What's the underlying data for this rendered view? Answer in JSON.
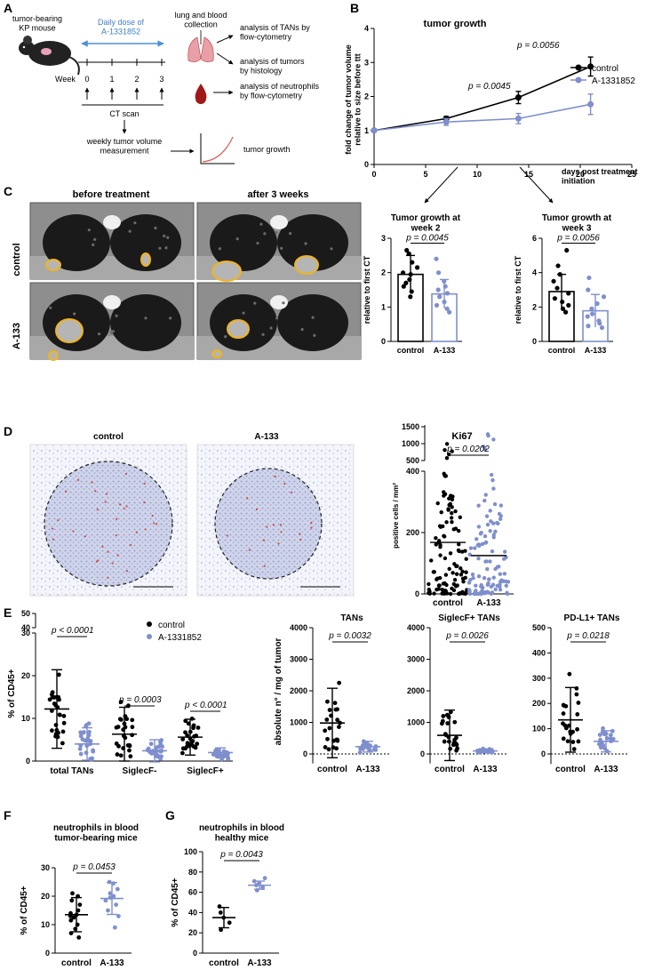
{
  "colors": {
    "control": "#000000",
    "treated": "#7f8fce",
    "treated_title": "#3f7fc8",
    "roi": "#f2b418",
    "lung_red": "#c94a4a"
  },
  "panels": {
    "A": "A",
    "B": "B",
    "C": "C",
    "D": "D",
    "E": "E",
    "F": "F",
    "G": "G"
  },
  "panelA": {
    "mouse_label": "tumor-bearing\nKP mouse",
    "daily_dose": "Daily dose of\nA-1331852",
    "collection": "lung and blood\ncollection",
    "week_label": "Week",
    "weeks": [
      "0",
      "1",
      "2",
      "3"
    ],
    "ct_scan": "CT scan",
    "weekly_measure": "weekly tumor volume\nmeasurement",
    "tumor_growth": "tumor growth",
    "analysis1": "analysis of TANs by\nflow-cytometry",
    "analysis2": "analysis of tumors\nby histology",
    "analysis3": "analysis of neutrophils\nby flow-cytometry"
  },
  "panelC": {
    "col1": "before treatment",
    "col2": "after 3 weeks",
    "row1": "control",
    "row2": "A-133"
  },
  "panelD": {
    "col1": "control",
    "col2": "A-133"
  },
  "chart_data": [
    {
      "id": "B-main",
      "type": "line",
      "title": "tumor growth",
      "xlabel": "days post treatment\ninitiation",
      "ylabel": "fold change of tumor volume\nrelative to size before ttt",
      "xlim": [
        0,
        25
      ],
      "ylim": [
        0,
        4
      ],
      "xticks": [
        "0",
        "5",
        "10",
        "15",
        "20",
        "25"
      ],
      "yticks": [
        "0",
        "1",
        "2",
        "3",
        "4"
      ],
      "legend": "top-right",
      "series": [
        {
          "name": "control",
          "x": [
            0,
            7,
            14,
            21
          ],
          "y": [
            1.0,
            1.35,
            1.97,
            2.88
          ],
          "err": [
            0,
            0.06,
            0.18,
            0.28
          ]
        },
        {
          "name": "A-1331852",
          "x": [
            0,
            7,
            14,
            21
          ],
          "y": [
            1.0,
            1.25,
            1.35,
            1.77
          ],
          "err": [
            0,
            0.1,
            0.15,
            0.3
          ]
        }
      ],
      "annotations": [
        "p = 0.0045",
        "p = 0.0056"
      ]
    },
    {
      "id": "B-week2",
      "type": "bar",
      "title": "Tumor growth at\nweek 2",
      "ylabel": "relative to first CT",
      "categories": [
        "control",
        "A-133"
      ],
      "ylim": [
        0,
        3
      ],
      "yticks": [
        "0",
        "1",
        "2",
        "3"
      ],
      "values": [
        1.95,
        1.38
      ],
      "err": [
        0.55,
        0.42
      ],
      "p": "p = 0.0045",
      "points": [
        [
          1.3,
          1.45,
          1.6,
          1.7,
          1.8,
          1.95,
          2.0,
          2.15,
          2.3,
          2.55,
          2.65
        ],
        [
          0.85,
          0.95,
          1.05,
          1.15,
          1.3,
          1.4,
          1.5,
          1.6,
          1.75,
          2.0,
          2.4
        ]
      ]
    },
    {
      "id": "B-week3",
      "type": "bar",
      "title": "Tumor growth at\nweek 3",
      "ylabel": "relative to first CT",
      "categories": [
        "control",
        "A-133"
      ],
      "ylim": [
        0,
        6
      ],
      "yticks": [
        "0",
        "2",
        "4",
        "6"
      ],
      "values": [
        2.9,
        1.78
      ],
      "err": [
        1.0,
        0.95
      ],
      "p": "p = 0.0056",
      "points": [
        [
          1.7,
          1.9,
          2.1,
          2.3,
          2.5,
          2.8,
          3.1,
          3.5,
          3.9,
          4.4,
          5.3
        ],
        [
          0.8,
          0.9,
          1.05,
          1.2,
          1.45,
          1.6,
          1.9,
          2.2,
          2.6,
          3.0,
          3.7
        ]
      ]
    },
    {
      "id": "D-ki67",
      "type": "scatter",
      "title": "Ki67",
      "ylabel": "positive cells / mm²",
      "categories": [
        "control",
        "A-133"
      ],
      "yticks": [
        "0",
        "200",
        "400",
        "500",
        "1000",
        "1500"
      ],
      "medians": [
        168,
        125
      ],
      "p": "p = 0.0202",
      "n_points": [
        110,
        110
      ]
    },
    {
      "id": "E-pct",
      "type": "scatter",
      "ylabel": "% of CD45+",
      "categories": [
        "total TANs",
        "SiglecF-",
        "SiglecF+"
      ],
      "yticks": [
        "0",
        "10",
        "20",
        "30",
        "40",
        "50"
      ],
      "legend": "top-right",
      "series": [
        {
          "name": "control",
          "means": [
            12.2,
            6.3,
            5.6
          ],
          "sd": [
            9.2,
            6.3,
            4.2
          ]
        },
        {
          "name": "A-1331852",
          "means": [
            4.0,
            2.4,
            2.0
          ],
          "sd": [
            3.8,
            2.6,
            1.1
          ]
        }
      ],
      "annotations": [
        "p < 0.0001",
        "p = 0.0003",
        "p < 0.0001"
      ]
    },
    {
      "id": "E-tans",
      "type": "scatter",
      "title": "TANs",
      "ylabel": "absolute n° / mg of tumor",
      "categories": [
        "control",
        "A-133"
      ],
      "ylim": [
        -300,
        4000
      ],
      "yticks": [
        "0",
        "1000",
        "2000",
        "3000",
        "4000"
      ],
      "means": [
        980,
        230
      ],
      "sd": [
        1100,
        170
      ],
      "p": "p = 0.0032"
    },
    {
      "id": "E-siglec",
      "type": "scatter",
      "title": "SiglecF+ TANs",
      "categories": [
        "control",
        "A-133"
      ],
      "ylim": [
        -300,
        4000
      ],
      "yticks": [
        "0",
        "1000",
        "2000",
        "3000",
        "4000"
      ],
      "means": [
        590,
        95
      ],
      "sd": [
        800,
        60
      ],
      "p": "p = 0.0026"
    },
    {
      "id": "E-pdl1",
      "type": "scatter",
      "title": "PD-L1+ TANs",
      "categories": [
        "control",
        "A-133"
      ],
      "ylim": [
        -40,
        500
      ],
      "yticks": [
        "0",
        "100",
        "200",
        "300",
        "400",
        "500"
      ],
      "means": [
        135,
        50
      ],
      "sd": [
        128,
        42
      ],
      "p": "p = 0.0218"
    },
    {
      "id": "F",
      "type": "scatter",
      "title": "neutrophils in blood\ntumor-bearing mice",
      "ylabel": "% of CD45+",
      "categories": [
        "control",
        "A-133"
      ],
      "ylim": [
        0,
        30
      ],
      "yticks": [
        "0",
        "10",
        "20",
        "30"
      ],
      "means": [
        13.5,
        19.2
      ],
      "sd": [
        6.0,
        5.6
      ],
      "p": "p = 0.0453",
      "points": [
        [
          5.5,
          7.0,
          8.5,
          10.0,
          11.5,
          12.5,
          13.0,
          13.5,
          14.0,
          15.0,
          17.0,
          18.5,
          20.0,
          21.0
        ],
        [
          9.0,
          13.0,
          15.0,
          17.0,
          18.5,
          19.5,
          20.0,
          21.0,
          22.5,
          24.5,
          25.0
        ]
      ]
    },
    {
      "id": "G",
      "type": "scatter",
      "title": "neutrophils in blood\nhealthy mice",
      "ylabel": "% of CD45+",
      "categories": [
        "control",
        "A-133"
      ],
      "ylim": [
        0,
        100
      ],
      "yticks": [
        "0",
        "20",
        "40",
        "60",
        "80",
        "100"
      ],
      "means": [
        35,
        67
      ],
      "sd": [
        10,
        4
      ],
      "p": "p = 0.0043",
      "points": [
        [
          23,
          30,
          35,
          40,
          46
        ],
        [
          62,
          65,
          67,
          69,
          71,
          74
        ]
      ]
    }
  ]
}
